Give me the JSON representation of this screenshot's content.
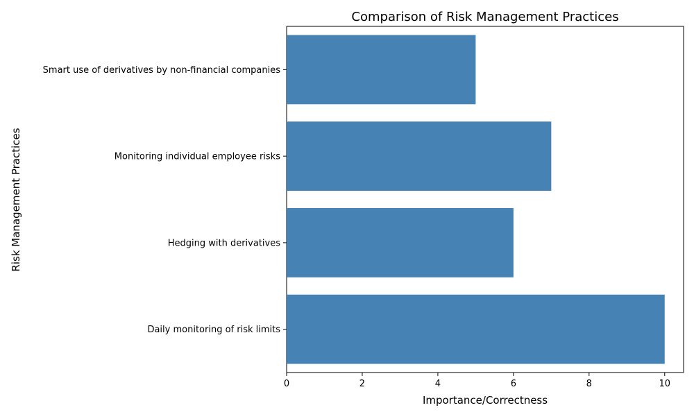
{
  "chart_data": {
    "type": "bar",
    "orientation": "horizontal",
    "title": "Comparison of Risk Management Practices",
    "xlabel": "Importance/Correctness",
    "ylabel": "Risk Management Practices",
    "categories": [
      "Daily monitoring of risk limits",
      "Hedging with derivatives",
      "Monitoring individual employee risks",
      "Smart use of derivatives by non-financial companies"
    ],
    "values": [
      10,
      6,
      7,
      5
    ],
    "xlim": [
      0,
      10.5
    ],
    "xticks": [
      "0",
      "2",
      "4",
      "6",
      "8",
      "10"
    ],
    "grid": false,
    "legend": "none",
    "bar_color": "#4682b4"
  }
}
